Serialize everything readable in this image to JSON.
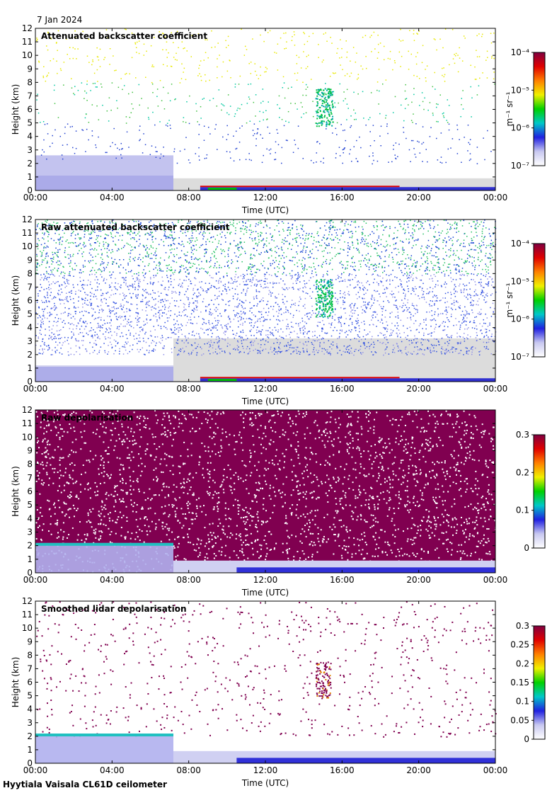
{
  "date": "7 Jan 2024",
  "footer": "Hyytiala Vaisala CL61D ceilometer",
  "chart_data": [
    {
      "type": "heatmap",
      "title": "Attenuated backscatter coefficient",
      "xlabel": "Time (UTC)",
      "ylabel": "Height (km)",
      "xticks": [
        "00:00",
        "04:00",
        "08:00",
        "12:00",
        "16:00",
        "20:00",
        "00:00"
      ],
      "xlim": [
        0,
        24
      ],
      "ylim": [
        0,
        12
      ],
      "yticks": [
        0,
        1,
        2,
        3,
        4,
        5,
        6,
        7,
        8,
        9,
        10,
        11,
        12
      ],
      "colorbar": {
        "label": "m⁻¹ sr⁻¹",
        "scale": "log",
        "range": [
          1e-07,
          0.0001
        ],
        "ticks": [
          "10⁻⁷",
          "10⁻⁶",
          "10⁻⁵",
          "10⁻⁴"
        ],
        "colormap": [
          "#ffffff",
          "#c8c8f0",
          "#2020e0",
          "#00c8c8",
          "#00d000",
          "#f0f000",
          "#ff8000",
          "#e00000",
          "#800040"
        ]
      }
    },
    {
      "type": "heatmap",
      "title": "Raw attenuated backscatter coefficient",
      "xlabel": "Time (UTC)",
      "ylabel": "Height (km)",
      "xticks": [
        "00:00",
        "04:00",
        "08:00",
        "12:00",
        "16:00",
        "20:00",
        "00:00"
      ],
      "xlim": [
        0,
        24
      ],
      "ylim": [
        0,
        12
      ],
      "yticks": [
        0,
        1,
        2,
        3,
        4,
        5,
        6,
        7,
        8,
        9,
        10,
        11,
        12
      ],
      "colorbar": {
        "label": "m⁻¹ sr⁻¹",
        "scale": "log",
        "range": [
          1e-07,
          0.0001
        ],
        "ticks": [
          "10⁻⁷",
          "10⁻⁶",
          "10⁻⁵",
          "10⁻⁴"
        ],
        "colormap": [
          "#ffffff",
          "#c8c8f0",
          "#2020e0",
          "#00c8c8",
          "#00d000",
          "#f0f000",
          "#ff8000",
          "#e00000",
          "#800040"
        ]
      }
    },
    {
      "type": "heatmap",
      "title": "Raw depolarisation",
      "xlabel": "Time (UTC)",
      "ylabel": "Height (km)",
      "xticks": [
        "00:00",
        "04:00",
        "08:00",
        "12:00",
        "16:00",
        "20:00",
        "00:00"
      ],
      "xlim": [
        0,
        24
      ],
      "ylim": [
        0,
        12
      ],
      "yticks": [
        0,
        1,
        2,
        3,
        4,
        5,
        6,
        7,
        8,
        9,
        10,
        11,
        12
      ],
      "colorbar": {
        "label": "",
        "scale": "linear",
        "range": [
          0,
          0.3
        ],
        "ticks": [
          "0",
          "0.1",
          "0.2",
          "0.3"
        ],
        "colormap": [
          "#ffffff",
          "#c8c8f0",
          "#2020e0",
          "#00c8c8",
          "#00d000",
          "#f0f000",
          "#ff8000",
          "#e00000",
          "#800040"
        ]
      }
    },
    {
      "type": "heatmap",
      "title": "Smoothed lidar depolarisation",
      "xlabel": "Time (UTC)",
      "ylabel": "Height (km)",
      "xticks": [
        "00:00",
        "04:00",
        "08:00",
        "12:00",
        "16:00",
        "20:00",
        "00:00"
      ],
      "xlim": [
        0,
        24
      ],
      "ylim": [
        0,
        12
      ],
      "yticks": [
        0,
        1,
        2,
        3,
        4,
        5,
        6,
        7,
        8,
        9,
        10,
        11,
        12
      ],
      "colorbar": {
        "label": "",
        "scale": "linear",
        "range": [
          0,
          0.3
        ],
        "ticks": [
          "0",
          "0.05",
          "0.1",
          "0.15",
          "0.2",
          "0.25",
          "0.3"
        ],
        "colormap": [
          "#ffffff",
          "#c8c8f0",
          "#2020e0",
          "#00c8c8",
          "#00d000",
          "#f0f000",
          "#ff8000",
          "#e00000",
          "#800040"
        ]
      }
    }
  ]
}
